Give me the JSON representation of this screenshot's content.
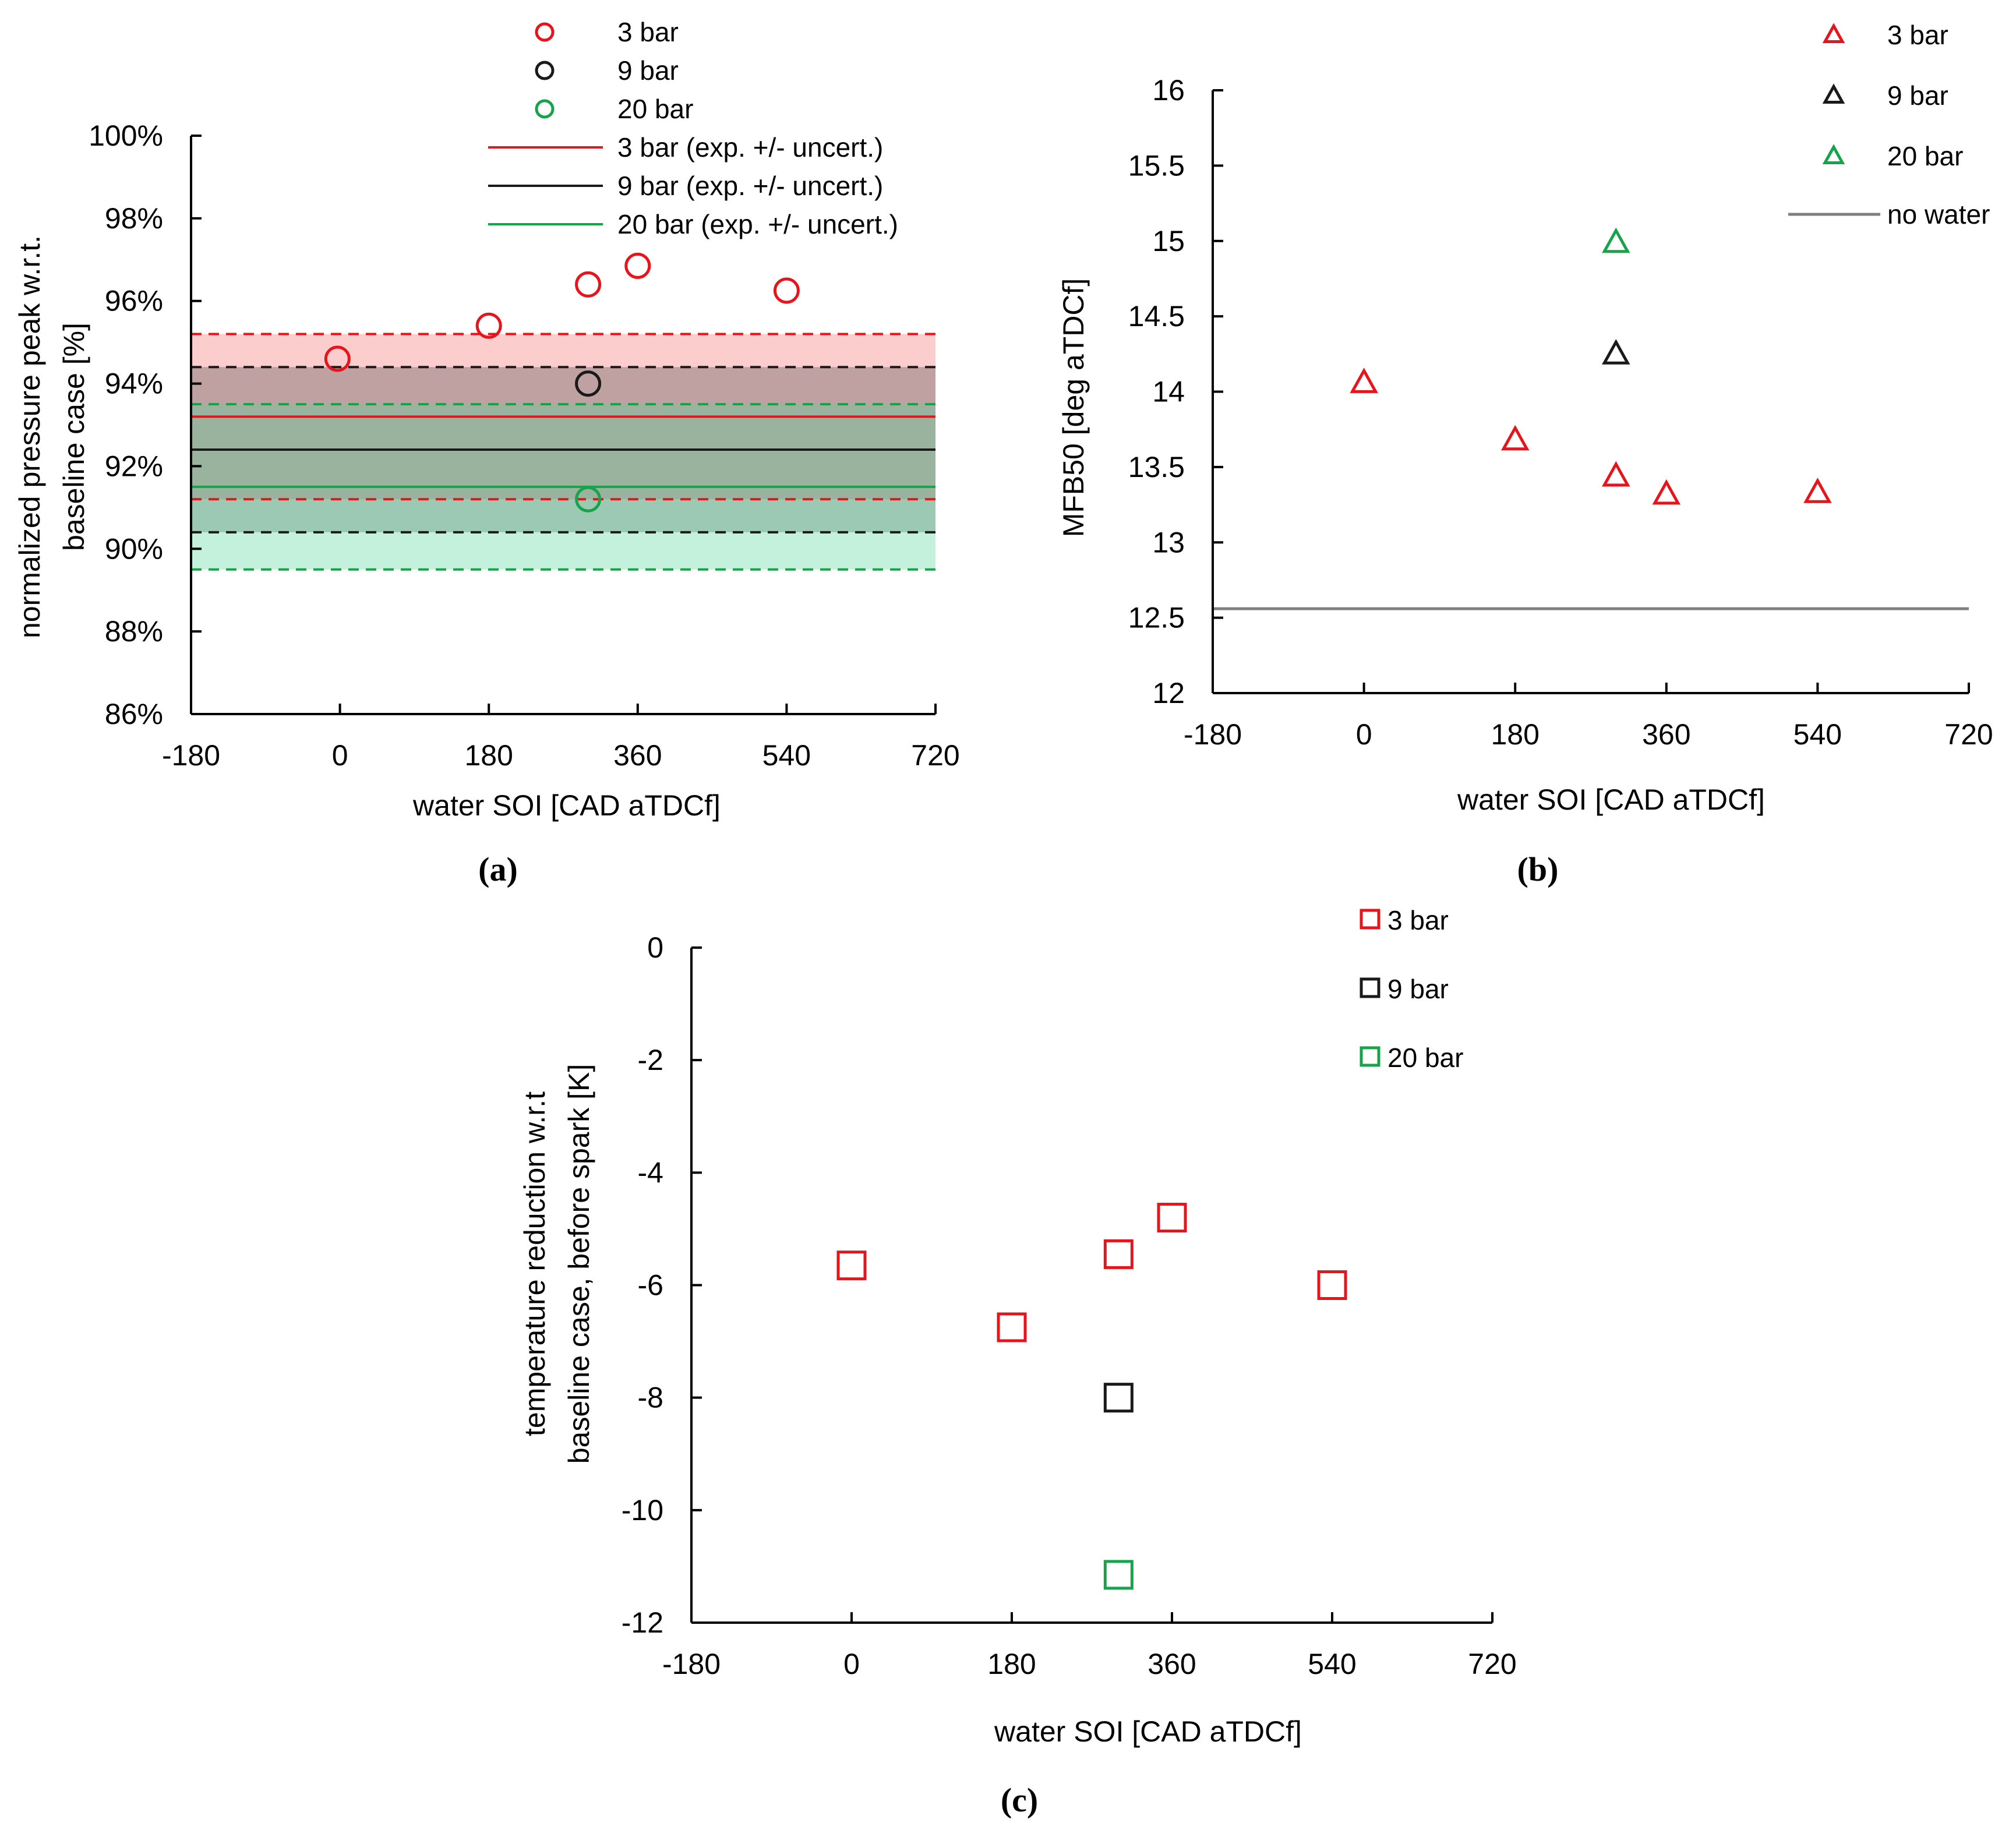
{
  "chart_data": [
    {
      "id": "a",
      "type": "scatter",
      "caption": "(a)",
      "xlabel": "water SOI [CAD aTDCf]",
      "ylabel_lines": [
        "normalized pressure peak w.r.t.",
        "baseline case [%]"
      ],
      "xlim": [
        -180,
        720
      ],
      "ylim": [
        86,
        100
      ],
      "xticks": [
        "-180",
        "0",
        "180",
        "360",
        "540",
        "720"
      ],
      "yticks": [
        "86%",
        "88%",
        "90%",
        "92%",
        "94%",
        "96%",
        "98%",
        "100%"
      ],
      "series": [
        {
          "name": "3 bar",
          "color": "#e8141b",
          "marker": "circle",
          "x": [
            -3,
            180,
            300,
            360,
            540
          ],
          "y": [
            94.6,
            95.4,
            96.4,
            96.85,
            96.25
          ]
        },
        {
          "name": "9 bar",
          "color": "#1a1a1a",
          "marker": "circle",
          "x": [
            300
          ],
          "y": [
            94.0
          ]
        },
        {
          "name": "20 bar",
          "color": "#17a34a",
          "marker": "circle",
          "x": [
            300
          ],
          "y": [
            91.2
          ]
        }
      ],
      "bands": [
        {
          "name": "3 bar (exp. +/- uncert.)",
          "color": "#e8141b",
          "fill": "#f46c6c",
          "center": 93.2,
          "low": 91.2,
          "high": 95.2
        },
        {
          "name": "9 bar (exp. +/- uncert.)",
          "color": "#1a1a1a",
          "fill": "#4d4d4d",
          "center": 92.4,
          "low": 90.4,
          "high": 94.4
        },
        {
          "name": "20 bar (exp. +/- uncert.)",
          "color": "#17a34a",
          "fill": "#4fd698",
          "center": 91.5,
          "low": 89.5,
          "high": 93.5
        }
      ]
    },
    {
      "id": "b",
      "type": "scatter",
      "caption": "(b)",
      "xlabel": "water SOI [CAD aTDCf]",
      "ylabel_lines": [
        "MFB50 [deg aTDCf]"
      ],
      "xlim": [
        -180,
        720
      ],
      "ylim": [
        12,
        16
      ],
      "xticks": [
        "-180",
        "0",
        "180",
        "360",
        "540",
        "720"
      ],
      "yticks": [
        "12",
        "12.5",
        "13",
        "13.5",
        "14",
        "14.5",
        "15",
        "15.5",
        "16"
      ],
      "series": [
        {
          "name": "3 bar",
          "color": "#e8141b",
          "marker": "triangle",
          "x": [
            0,
            180,
            300,
            360,
            540
          ],
          "y": [
            14.07,
            13.69,
            13.45,
            13.33,
            13.34
          ]
        },
        {
          "name": "9 bar",
          "color": "#1a1a1a",
          "marker": "triangle",
          "x": [
            300
          ],
          "y": [
            14.26
          ]
        },
        {
          "name": "20 bar",
          "color": "#17a34a",
          "marker": "triangle",
          "x": [
            300
          ],
          "y": [
            15.0
          ]
        }
      ],
      "reference_line": {
        "name": "no water",
        "color": "#808080",
        "value": 12.56
      }
    },
    {
      "id": "c",
      "type": "scatter",
      "caption": "(c)",
      "xlabel": "water SOI [CAD aTDCf]",
      "ylabel_lines": [
        "temperature reduction w.r.t",
        "baseline case, before spark [K]"
      ],
      "xlim": [
        -180,
        720
      ],
      "ylim": [
        -12,
        0
      ],
      "xticks": [
        "-180",
        "0",
        "180",
        "360",
        "540",
        "720"
      ],
      "yticks": [
        "-12",
        "-10",
        "-8",
        "-6",
        "-4",
        "-2",
        "0"
      ],
      "series": [
        {
          "name": "3 bar",
          "color": "#e8141b",
          "marker": "square",
          "x": [
            0,
            180,
            300,
            360,
            540
          ],
          "y": [
            -5.65,
            -6.75,
            -5.45,
            -4.8,
            -6.0
          ]
        },
        {
          "name": "9 bar",
          "color": "#1a1a1a",
          "marker": "square",
          "x": [
            300
          ],
          "y": [
            -8.0
          ]
        },
        {
          "name": "20 bar",
          "color": "#17a34a",
          "marker": "square",
          "x": [
            300
          ],
          "y": [
            -11.15
          ]
        }
      ]
    }
  ]
}
